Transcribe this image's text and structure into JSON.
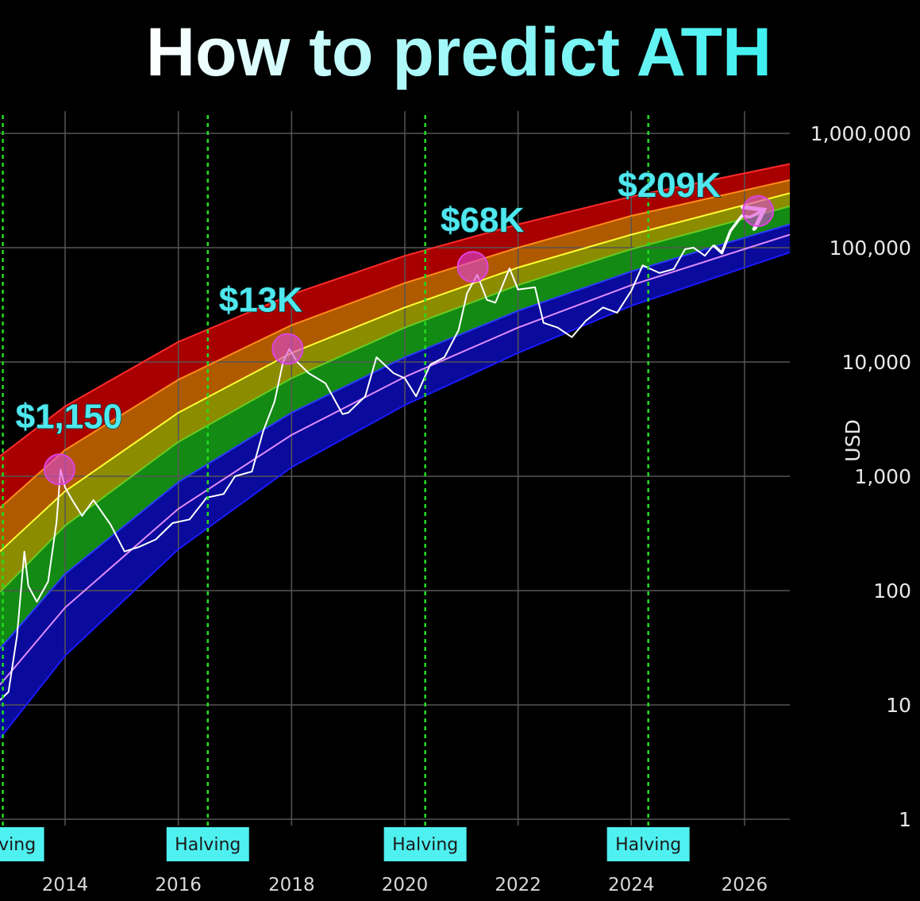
{
  "chart_data": {
    "type": "line",
    "title": "How to predict ATH",
    "y_label": "USD",
    "log_scale": true,
    "grid": true,
    "xlim": [
      2012.85,
      2026.8
    ],
    "ylim": [
      1,
      1000000
    ],
    "xticks": [
      2014,
      2016,
      2018,
      2020,
      2022,
      2024,
      2026
    ],
    "yticks": [
      1,
      10,
      100,
      {
        "value": 1000,
        "label": "1,000"
      },
      {
        "value": 10000,
        "label": "10,000"
      },
      {
        "value": 100000,
        "label": "100,000"
      },
      {
        "value": 1000000,
        "label": "1,000,000"
      }
    ],
    "band_x": [
      2012.85,
      2014,
      2016,
      2018,
      2020,
      2022,
      2024,
      2026.8
    ],
    "bands": [
      {
        "color": "#ff2a2a",
        "fill": "#a80000",
        "values": [
          1500,
          4100,
          15000,
          39000,
          85000,
          160000,
          280000,
          540000
        ]
      },
      {
        "color": "#ff8c1a",
        "fill": "#b05a00",
        "values": [
          530,
          1700,
          7000,
          21000,
          49000,
          100000,
          190000,
          390000
        ]
      },
      {
        "color": "#ffff33",
        "fill": "#8c8c00",
        "values": [
          220,
          740,
          3600,
          12000,
          30000,
          67000,
          130000,
          300000
        ]
      },
      {
        "color": "#66cc22",
        "fill": "#138a13",
        "values": [
          97,
          370,
          2000,
          7200,
          20000,
          47000,
          97000,
          230000
        ]
      },
      {
        "color": "#2a3cff",
        "fill": "#0a0a9c",
        "values": [
          31,
          140,
          890,
          3600,
          11000,
          28000,
          62000,
          160000
        ]
      },
      {
        "color": "#e08cff",
        "fill": null,
        "values": [
          15,
          71,
          520,
          2300,
          7400,
          20000,
          47000,
          130000
        ]
      },
      {
        "color": "#1a1aff",
        "fill": "#000000",
        "values": [
          5.1,
          27,
          230,
          1200,
          4200,
          12000,
          31000,
          91000
        ]
      }
    ],
    "price": {
      "color": "#ffffff",
      "x": [
        2012.85,
        2013.0,
        2013.15,
        2013.28,
        2013.35,
        2013.5,
        2013.7,
        2013.85,
        2013.92,
        2014.0,
        2014.1,
        2014.3,
        2014.5,
        2014.8,
        2015.05,
        2015.3,
        2015.6,
        2015.9,
        2016.2,
        2016.5,
        2016.8,
        2017.0,
        2017.3,
        2017.5,
        2017.7,
        2017.85,
        2017.96,
        2018.1,
        2018.3,
        2018.6,
        2018.9,
        2019.0,
        2019.3,
        2019.5,
        2019.8,
        2020.0,
        2020.2,
        2020.45,
        2020.7,
        2020.95,
        2021.1,
        2021.28,
        2021.45,
        2021.6,
        2021.85,
        2022.0,
        2022.3,
        2022.45,
        2022.7,
        2022.95,
        2023.2,
        2023.5,
        2023.75,
        2024.0,
        2024.2,
        2024.5,
        2024.75,
        2024.95,
        2025.1,
        2025.3,
        2025.45
      ],
      "values": [
        11,
        13,
        40,
        220,
        110,
        80,
        120,
        400,
        1150,
        800,
        650,
        450,
        620,
        380,
        220,
        240,
        280,
        390,
        420,
        650,
        700,
        1000,
        1100,
        2500,
        4500,
        10000,
        13000,
        10000,
        8000,
        6500,
        3500,
        3600,
        5000,
        11000,
        8000,
        7200,
        5000,
        9500,
        11000,
        19000,
        40000,
        58000,
        35000,
        33000,
        66000,
        43000,
        45000,
        22000,
        20000,
        16500,
        23000,
        30000,
        27000,
        42000,
        70000,
        60000,
        65000,
        97000,
        100000,
        85000,
        105000
      ]
    },
    "projection": {
      "color": "#ffffff",
      "x": [
        2025.45,
        2025.6,
        2025.75,
        2025.95,
        2026.1,
        2026.3
      ],
      "values": [
        105000,
        90000,
        140000,
        190000,
        185000,
        209000
      ]
    },
    "annotation_color": "#4fe8ee",
    "marker_color": "#dd44dd",
    "annotations": [
      {
        "x": 2013.9,
        "value": 1150,
        "label": "$1,150"
      },
      {
        "x": 2017.93,
        "value": 13000,
        "label": "$13K"
      },
      {
        "x": 2021.2,
        "value": 68000,
        "label": "$68K"
      },
      {
        "x": 2026.24,
        "value": 209000,
        "label": "$209K"
      }
    ],
    "halvings": {
      "label": "Halving",
      "color": "#22dd22",
      "box_color": "#4ff0f0",
      "x": [
        2012.9,
        2016.52,
        2020.36,
        2024.3
      ]
    }
  }
}
